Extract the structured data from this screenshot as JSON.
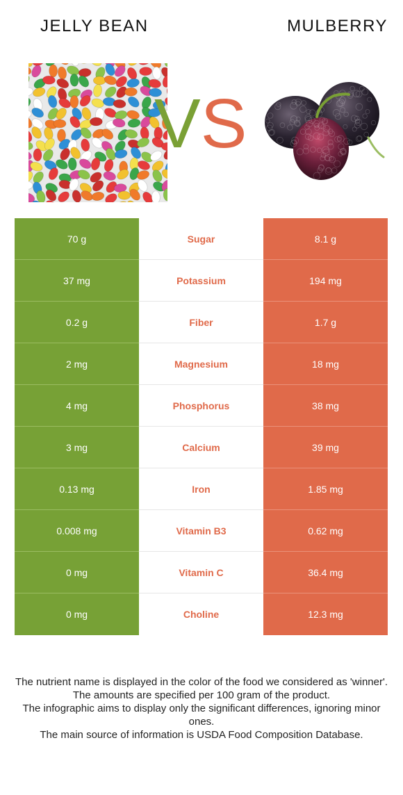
{
  "colors": {
    "winner_left": "#77a136",
    "winner_right": "#e06a4a"
  },
  "header": {
    "left_title": "JELLY BEAN",
    "right_title": "MULBERRY",
    "vs_v": "V",
    "vs_s": "S"
  },
  "images": {
    "left": "jelly-bean-photo",
    "right": "mulberry-photo"
  },
  "nutrients": [
    {
      "name": "Sugar",
      "left": "70 g",
      "right": "8.1 g",
      "winner": "right"
    },
    {
      "name": "Potassium",
      "left": "37 mg",
      "right": "194 mg",
      "winner": "right"
    },
    {
      "name": "Fiber",
      "left": "0.2 g",
      "right": "1.7 g",
      "winner": "right"
    },
    {
      "name": "Magnesium",
      "left": "2 mg",
      "right": "18 mg",
      "winner": "right"
    },
    {
      "name": "Phosphorus",
      "left": "4 mg",
      "right": "38 mg",
      "winner": "right"
    },
    {
      "name": "Calcium",
      "left": "3 mg",
      "right": "39 mg",
      "winner": "right"
    },
    {
      "name": "Iron",
      "left": "0.13 mg",
      "right": "1.85 mg",
      "winner": "right"
    },
    {
      "name": "Vitamin B3",
      "left": "0.008 mg",
      "right": "0.62 mg",
      "winner": "right"
    },
    {
      "name": "Vitamin C",
      "left": "0 mg",
      "right": "36.4 mg",
      "winner": "right"
    },
    {
      "name": "Choline",
      "left": "0 mg",
      "right": "12.3 mg",
      "winner": "right"
    }
  ],
  "notes": [
    "The nutrient name is displayed in the color of the food we considered as 'winner'.",
    "The amounts are specified per 100 gram of the product.",
    "The infographic aims to display only the significant differences, ignoring minor ones.",
    "The main source of information is USDA Food Composition Database."
  ]
}
